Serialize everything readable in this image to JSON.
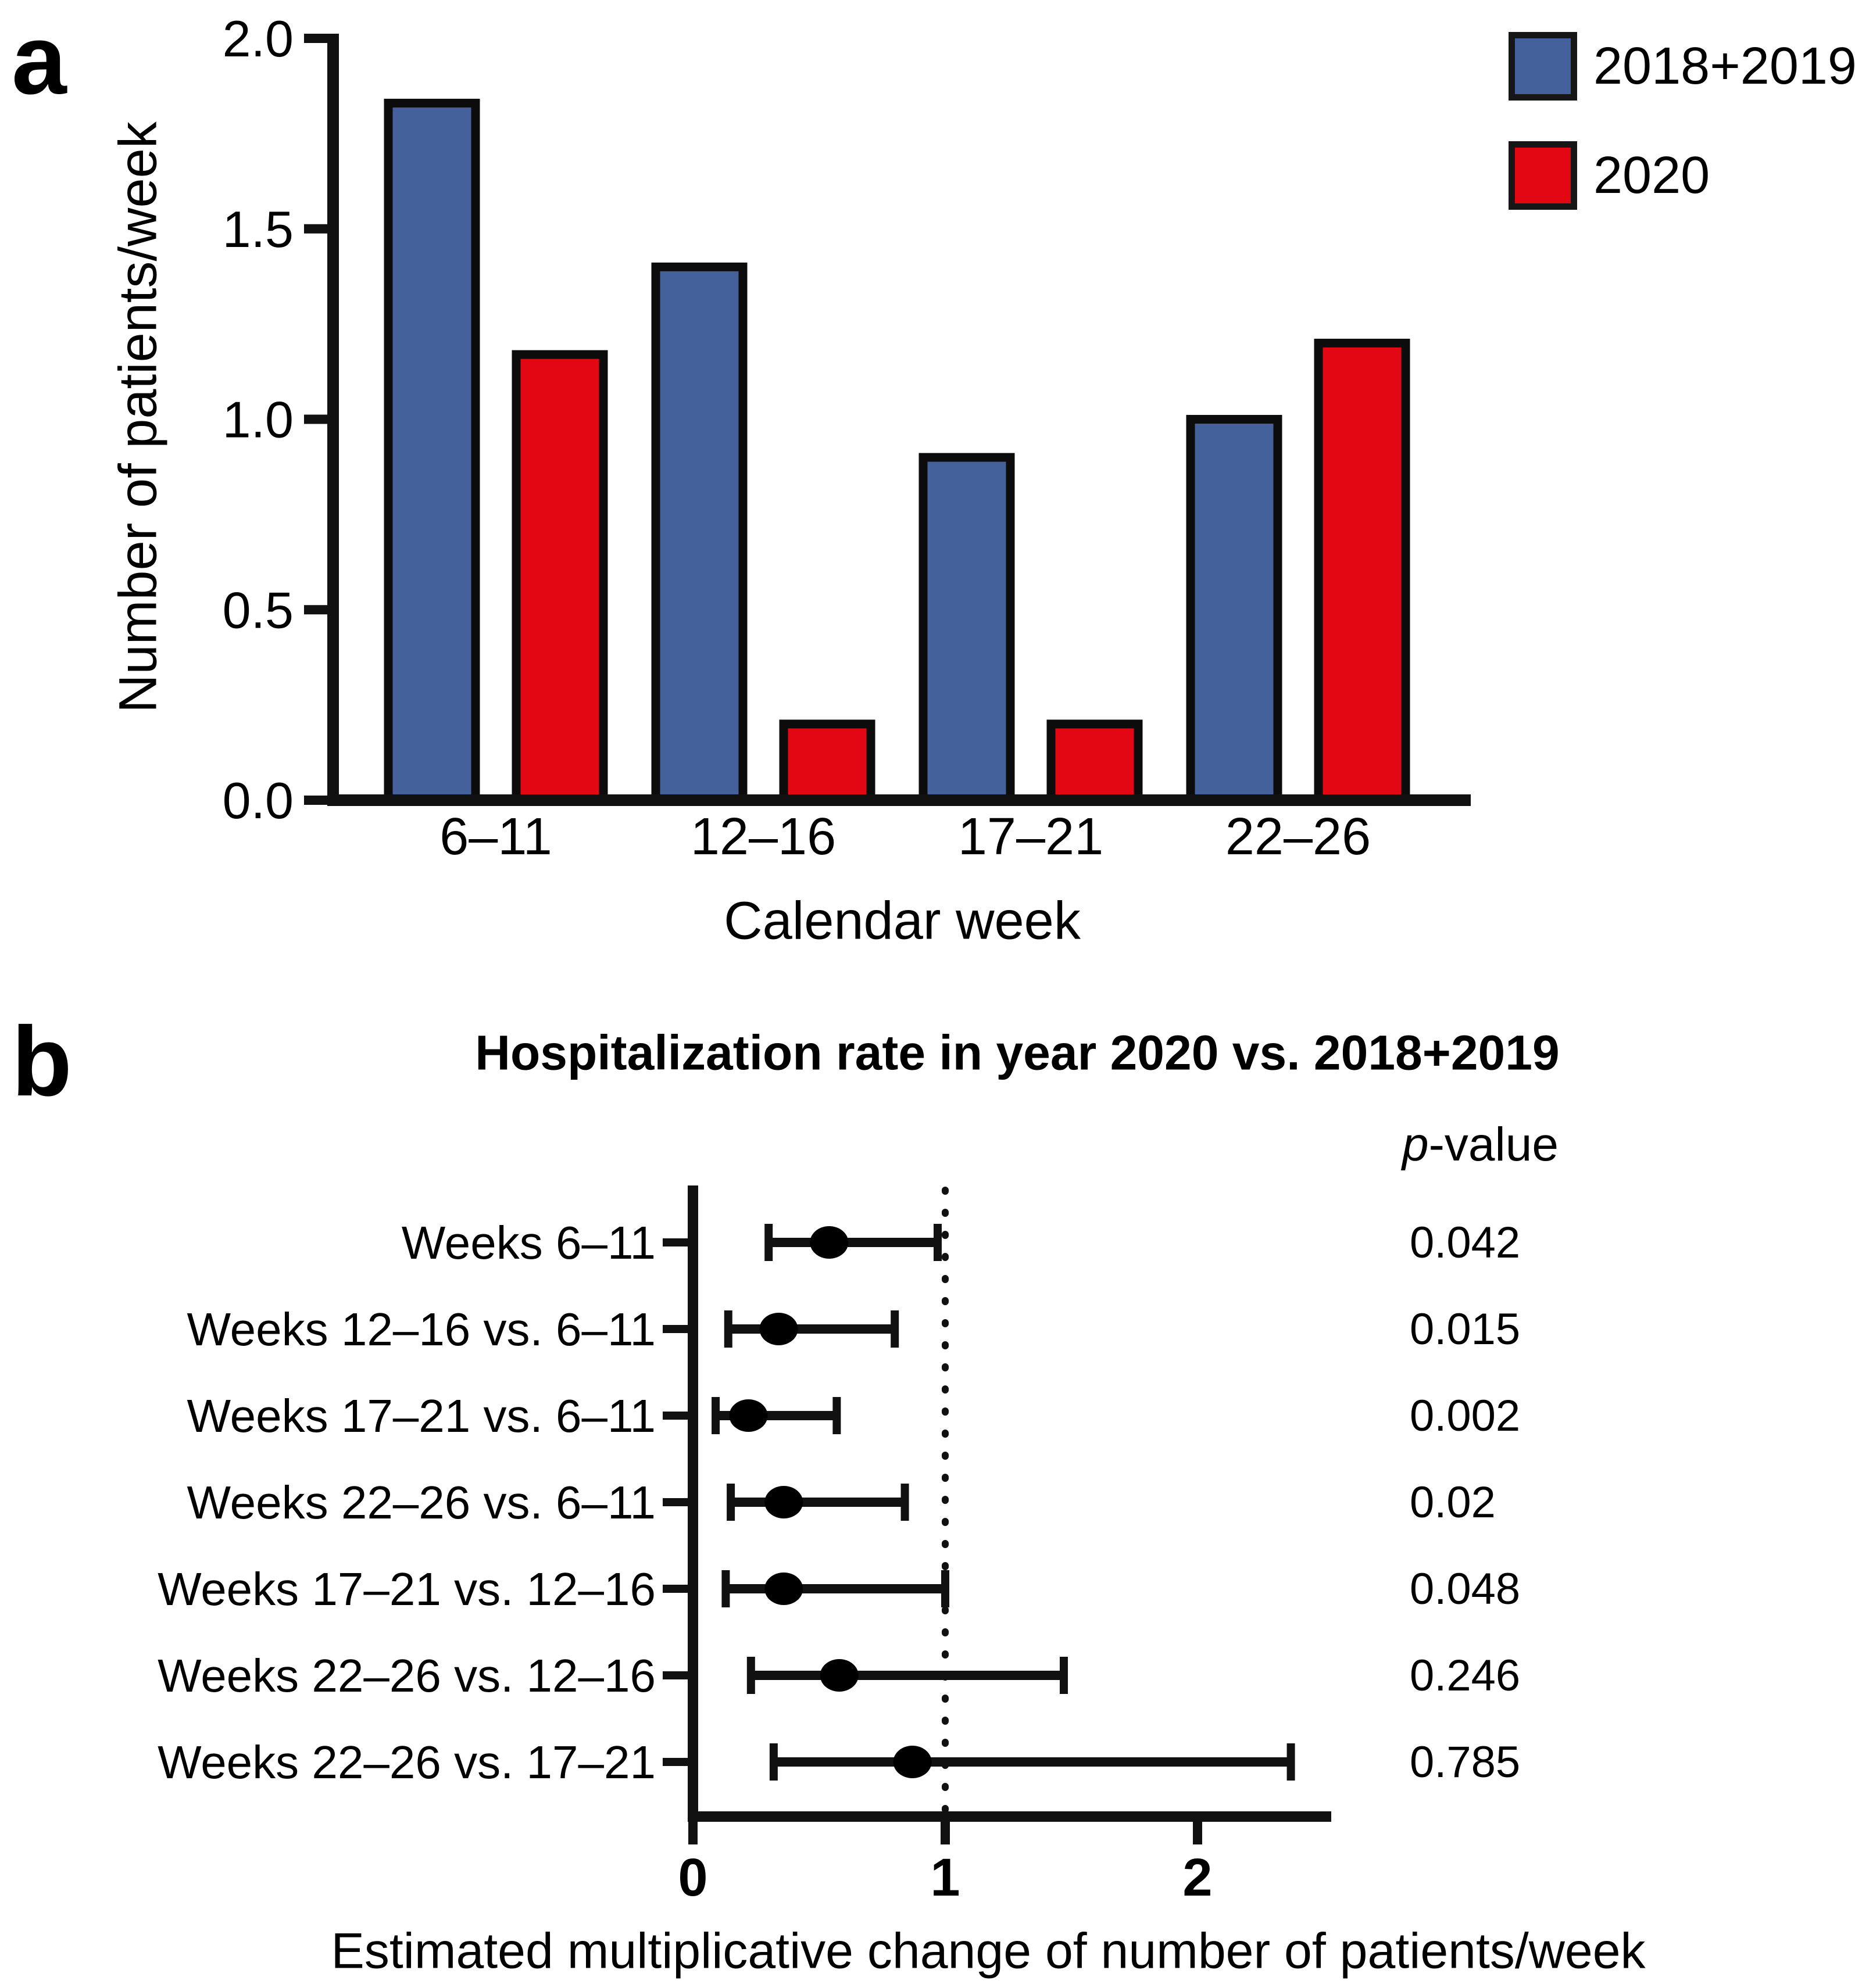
{
  "labels": {
    "panel_a": "a",
    "panel_b": "b"
  },
  "colors": {
    "blue": "#44619B",
    "red": "#E30613",
    "axis_black": "#111111"
  },
  "chart_data": [
    {
      "id": "a",
      "type": "bar",
      "categories": [
        "6–11",
        "12–16",
        "17–21",
        "22–26"
      ],
      "series": [
        {
          "name": "2018+2019",
          "color_key": "blue",
          "values": [
            1.83,
            1.4,
            0.9,
            1.0
          ]
        },
        {
          "name": "2020",
          "color_key": "red",
          "values": [
            1.17,
            0.2,
            0.2,
            1.2
          ]
        }
      ],
      "xlabel": "Calendar week",
      "ylabel": "Number of patients/week",
      "y_ticks": [
        "0.0",
        "0.5",
        "1.0",
        "1.5",
        "2.0"
      ],
      "ylim": [
        0,
        2.0
      ],
      "grid": "off",
      "legend_position": "top-right"
    },
    {
      "id": "b",
      "type": "forest",
      "title": "Hospitalization rate in year 2020 vs. 2018+2019",
      "pvalue_header": {
        "p": "p",
        "suffix": "-value"
      },
      "rows": [
        {
          "label": "Weeks 6–11",
          "estimate": 0.54,
          "ci_low": 0.3,
          "ci_high": 0.97,
          "p_value": "0.042"
        },
        {
          "label": "Weeks 12–16 vs. 6–11",
          "estimate": 0.34,
          "ci_low": 0.14,
          "ci_high": 0.8,
          "p_value": "0.015"
        },
        {
          "label": "Weeks 17–21 vs. 6–11",
          "estimate": 0.22,
          "ci_low": 0.09,
          "ci_high": 0.57,
          "p_value": "0.002"
        },
        {
          "label": "Weeks 22–26 vs. 6–11",
          "estimate": 0.36,
          "ci_low": 0.15,
          "ci_high": 0.84,
          "p_value": "0.02"
        },
        {
          "label": "Weeks 17–21 vs. 12–16",
          "estimate": 0.36,
          "ci_low": 0.13,
          "ci_high": 1.0,
          "p_value": "0.048"
        },
        {
          "label": "Weeks 22–26 vs. 12–16",
          "estimate": 0.58,
          "ci_low": 0.23,
          "ci_high": 1.47,
          "p_value": "0.246"
        },
        {
          "label": "Weeks 22–26 vs. 17–21",
          "estimate": 0.87,
          "ci_low": 0.32,
          "ci_high": 2.37,
          "p_value": "0.785"
        }
      ],
      "xlabel": "Estimated multiplicative change of number of patients/week",
      "x_ticks": [
        "0",
        "1",
        "2"
      ],
      "xlim": [
        0,
        2.53
      ],
      "reference_line": 1,
      "grid": "off"
    }
  ]
}
